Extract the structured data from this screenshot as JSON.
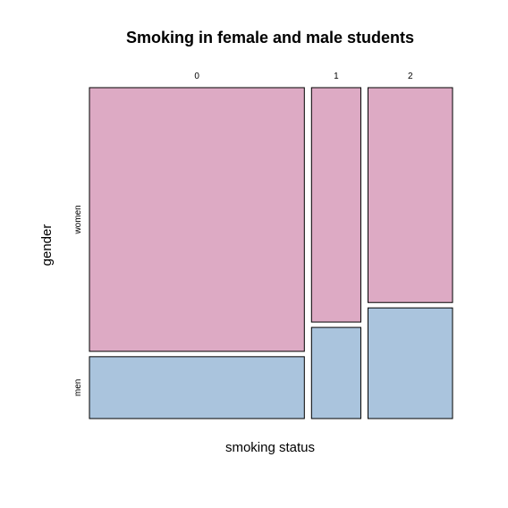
{
  "chart_data": {
    "type": "mosaic",
    "title": "Smoking in female and male students",
    "xlabel": "smoking status",
    "ylabel": "gender",
    "x_categories": [
      "0",
      "1",
      "2"
    ],
    "y_categories": [
      "women",
      "men"
    ],
    "x_proportions": [
      0.61,
      0.14,
      0.24
    ],
    "conditional_proportions": {
      "0": {
        "women": 0.81,
        "men": 0.19
      },
      "1": {
        "women": 0.72,
        "men": 0.28
      },
      "2": {
        "women": 0.66,
        "men": 0.34
      }
    },
    "colors": {
      "women": "#DDAAC4",
      "men": "#AAC4DD"
    },
    "grid": false,
    "legend": "none"
  }
}
